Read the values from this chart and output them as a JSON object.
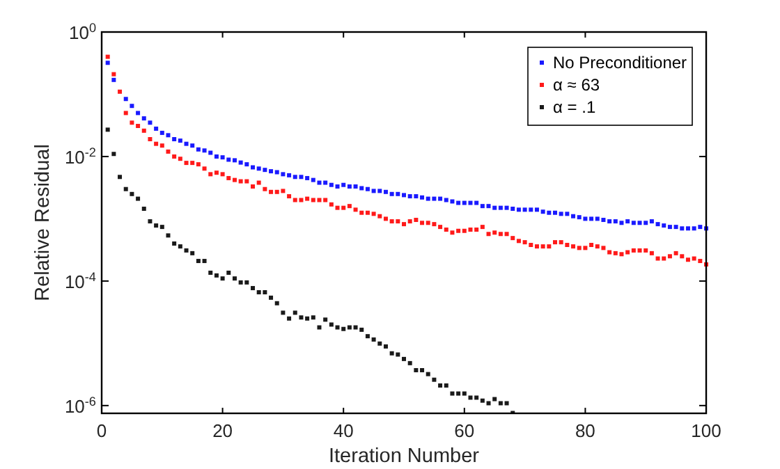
{
  "chart_data": {
    "type": "scatter",
    "xlabel": "Iteration Number",
    "ylabel": "Relative Residual",
    "log": "y",
    "marker": "square",
    "legend": "top right",
    "xlim": [
      0,
      100
    ],
    "xticks": [
      0,
      20,
      40,
      60,
      80,
      100
    ],
    "ylim": [
      7.5e-07,
      1
    ],
    "yticks": [
      {
        "value": 1,
        "label": "10$^{0}$"
      },
      {
        "value": 0.01,
        "label": "10$^{-2}$"
      },
      {
        "value": 0.0001,
        "label": "10$^{-4}$"
      },
      {
        "value": 1e-06,
        "label": "10$^{-6}$"
      }
    ],
    "x": [
      1,
      2,
      3,
      4,
      5,
      6,
      7,
      8,
      9,
      10,
      11,
      12,
      13,
      14,
      15,
      16,
      17,
      18,
      19,
      20,
      21,
      22,
      23,
      24,
      25,
      26,
      27,
      28,
      29,
      30,
      31,
      32,
      33,
      34,
      35,
      36,
      37,
      38,
      39,
      40,
      41,
      42,
      43,
      44,
      45,
      46,
      47,
      48,
      49,
      50,
      51,
      52,
      53,
      54,
      55,
      56,
      57,
      58,
      59,
      60,
      61,
      62,
      63,
      64,
      65,
      66,
      67,
      68,
      69,
      70,
      71,
      72,
      73,
      74,
      75,
      76,
      77,
      78,
      79,
      80,
      81,
      82,
      83,
      84,
      85,
      86,
      87,
      88,
      89,
      90,
      91,
      92,
      93,
      94,
      95,
      96,
      97,
      98,
      99,
      100
    ],
    "series": [
      {
        "name": "No Preconditioner",
        "color": "#1a1aff",
        "values": [
          0.32,
          0.17,
          null,
          0.084,
          0.065,
          0.05,
          0.041,
          0.035,
          0.028,
          0.024,
          0.022,
          0.019,
          0.018,
          0.016,
          0.015,
          0.013,
          0.0125,
          0.0115,
          0.01,
          0.0097,
          0.0089,
          0.0087,
          0.008,
          0.0075,
          0.0067,
          0.0064,
          0.0061,
          0.0058,
          0.0056,
          0.0052,
          0.005,
          0.0047,
          0.0047,
          0.0045,
          0.0042,
          0.0038,
          0.0038,
          0.0035,
          0.0033,
          0.0035,
          0.0033,
          0.0033,
          0.0031,
          0.003,
          0.0028,
          0.0028,
          0.0027,
          0.0025,
          0.0025,
          0.0024,
          0.0023,
          0.0023,
          0.0022,
          0.0021,
          0.0021,
          0.0021,
          0.002,
          0.0019,
          0.0018,
          0.0018,
          0.0018,
          0.0018,
          0.0016,
          0.0016,
          0.0015,
          0.0015,
          0.0015,
          0.00145,
          0.0014,
          0.0014,
          0.0014,
          0.0014,
          0.0013,
          0.00125,
          0.00125,
          0.0012,
          0.0012,
          0.0011,
          0.00106,
          0.001,
          0.001,
          0.001,
          0.00096,
          0.00091,
          0.00091,
          0.00086,
          0.00091,
          0.00086,
          0.00086,
          0.00086,
          0.00091,
          0.00082,
          0.00078,
          0.00074,
          0.00074,
          0.0007,
          0.0007,
          0.0007,
          0.00074,
          0.0007
        ]
      },
      {
        "name": "α ≈ 63",
        "color": "#ff1a1a",
        "values": [
          0.4,
          0.21,
          0.11,
          0.05,
          0.035,
          0.031,
          0.026,
          0.019,
          0.016,
          0.015,
          0.012,
          0.01,
          0.0092,
          0.0079,
          0.0079,
          0.0075,
          0.0064,
          0.0052,
          0.0055,
          0.0052,
          0.0045,
          0.0042,
          0.004,
          0.004,
          0.0033,
          0.0038,
          0.003,
          0.0027,
          0.0027,
          0.0028,
          0.0023,
          0.002,
          0.002,
          0.0021,
          0.002,
          0.002,
          0.002,
          0.0017,
          0.0015,
          0.0015,
          0.0016,
          0.0014,
          0.00125,
          0.00125,
          0.0012,
          0.0011,
          0.001,
          0.00091,
          0.00091,
          0.00082,
          0.00091,
          0.00096,
          0.00086,
          0.00086,
          0.00082,
          0.00074,
          0.00067,
          0.0006,
          0.00064,
          0.00064,
          0.00067,
          0.00067,
          0.00074,
          0.00057,
          0.0006,
          0.00057,
          0.00057,
          0.00049,
          0.00044,
          0.00042,
          0.00038,
          0.00036,
          0.00036,
          0.00036,
          0.00042,
          0.00042,
          0.00038,
          0.00036,
          0.00034,
          0.00034,
          0.00038,
          0.00036,
          0.00034,
          0.00029,
          0.00028,
          0.00027,
          0.00029,
          0.00031,
          0.00031,
          0.00031,
          0.00028,
          0.00023,
          0.00023,
          0.00025,
          0.00028,
          0.00025,
          0.00022,
          0.00023,
          0.00021,
          0.000185
        ]
      },
      {
        "name": "α = .1",
        "color": "#1a1a1a",
        "x": [
          1,
          2,
          3,
          4,
          5,
          6,
          7,
          8,
          9,
          10,
          11,
          12,
          13,
          14,
          15,
          16,
          17,
          18,
          19,
          20,
          21,
          22,
          23,
          24,
          25,
          26,
          27,
          28,
          29,
          30,
          31,
          32,
          33,
          34,
          35,
          36,
          37,
          38,
          39,
          40,
          41,
          42,
          43,
          44,
          45,
          46,
          47,
          48,
          49,
          50,
          51,
          52,
          53,
          54,
          55,
          56,
          57,
          58,
          59,
          60,
          61,
          62,
          63,
          64,
          65,
          66,
          67,
          68
        ],
        "values": [
          0.027,
          0.011,
          0.0047,
          0.003,
          0.0025,
          0.0021,
          0.00145,
          0.00091,
          0.00078,
          0.00074,
          0.00054,
          0.0004,
          0.00036,
          0.00031,
          0.00028,
          0.00021,
          0.00021,
          0.000136,
          0.000123,
          0.00011,
          0.000136,
          0.00011,
          9.5e-05,
          9.5e-05,
          7.7e-05,
          6.6e-05,
          6.6e-05,
          5.4e-05,
          4.4e-05,
          3.1e-05,
          2.5e-05,
          3.1e-05,
          2.6e-05,
          2.5e-05,
          2.6e-05,
          1.8e-05,
          2.4e-05,
          2e-05,
          1.8e-05,
          1.7e-05,
          1.8e-05,
          1.8e-05,
          1.65e-05,
          1.3e-05,
          1.15e-05,
          9.9e-06,
          8.9e-06,
          6.9e-06,
          6.6e-06,
          5.6e-06,
          4.8e-06,
          3.7e-06,
          3.7e-06,
          3.2e-06,
          2.6e-06,
          2.1e-06,
          2.1e-06,
          1.56e-06,
          1.56e-06,
          1.56e-06,
          1.34e-06,
          1.34e-06,
          1.2e-06,
          1.09e-06,
          1.27e-06,
          1.09e-06,
          1.09e-06,
          7.6e-07
        ]
      }
    ]
  }
}
